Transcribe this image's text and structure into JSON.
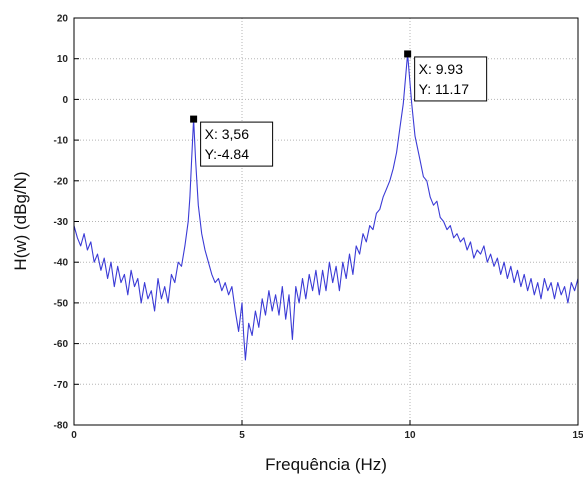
{
  "chart_data": {
    "type": "line",
    "xlabel": "Frequência (Hz)",
    "ylabel": "H(w) (dBg/N)",
    "xlim": [
      0,
      15
    ],
    "ylim": [
      -80,
      20
    ],
    "grid": true,
    "x_ticks": [
      "0",
      "5",
      "10",
      "15"
    ],
    "y_ticks": [
      "20",
      "10",
      "0",
      "-10",
      "-20",
      "-30",
      "-40",
      "-50",
      "-60",
      "-70",
      "-80"
    ],
    "line_color": "#3b3bd6",
    "series": [
      {
        "points": [
          [
            0.0,
            -31
          ],
          [
            0.1,
            -34
          ],
          [
            0.2,
            -36
          ],
          [
            0.3,
            -33
          ],
          [
            0.4,
            -37
          ],
          [
            0.5,
            -35
          ],
          [
            0.6,
            -40
          ],
          [
            0.7,
            -38
          ],
          [
            0.8,
            -42
          ],
          [
            0.9,
            -39
          ],
          [
            1.0,
            -44
          ],
          [
            1.1,
            -40
          ],
          [
            1.2,
            -46
          ],
          [
            1.3,
            -41
          ],
          [
            1.4,
            -45
          ],
          [
            1.5,
            -43
          ],
          [
            1.6,
            -48
          ],
          [
            1.7,
            -42
          ],
          [
            1.8,
            -46
          ],
          [
            1.9,
            -44
          ],
          [
            2.0,
            -50
          ],
          [
            2.1,
            -45
          ],
          [
            2.2,
            -49
          ],
          [
            2.3,
            -47
          ],
          [
            2.4,
            -52
          ],
          [
            2.5,
            -44
          ],
          [
            2.6,
            -49
          ],
          [
            2.7,
            -46
          ],
          [
            2.8,
            -50
          ],
          [
            2.9,
            -43
          ],
          [
            3.0,
            -45
          ],
          [
            3.1,
            -40
          ],
          [
            3.2,
            -41
          ],
          [
            3.3,
            -36
          ],
          [
            3.4,
            -30
          ],
          [
            3.45,
            -24
          ],
          [
            3.5,
            -15
          ],
          [
            3.56,
            -4.84
          ],
          [
            3.62,
            -15
          ],
          [
            3.7,
            -26
          ],
          [
            3.8,
            -33
          ],
          [
            3.9,
            -37
          ],
          [
            4.0,
            -40
          ],
          [
            4.1,
            -43
          ],
          [
            4.2,
            -45
          ],
          [
            4.3,
            -44
          ],
          [
            4.4,
            -47
          ],
          [
            4.5,
            -45
          ],
          [
            4.6,
            -48
          ],
          [
            4.7,
            -46
          ],
          [
            4.8,
            -52
          ],
          [
            4.9,
            -57
          ],
          [
            5.0,
            -50
          ],
          [
            5.05,
            -58
          ],
          [
            5.1,
            -64
          ],
          [
            5.2,
            -55
          ],
          [
            5.3,
            -58
          ],
          [
            5.4,
            -52
          ],
          [
            5.5,
            -56
          ],
          [
            5.6,
            -49
          ],
          [
            5.7,
            -53
          ],
          [
            5.8,
            -47
          ],
          [
            5.9,
            -52
          ],
          [
            6.0,
            -48
          ],
          [
            6.1,
            -53
          ],
          [
            6.2,
            -46
          ],
          [
            6.3,
            -54
          ],
          [
            6.4,
            -48
          ],
          [
            6.5,
            -59
          ],
          [
            6.6,
            -46
          ],
          [
            6.7,
            -50
          ],
          [
            6.8,
            -44
          ],
          [
            6.9,
            -49
          ],
          [
            7.0,
            -43
          ],
          [
            7.1,
            -47
          ],
          [
            7.2,
            -42
          ],
          [
            7.3,
            -48
          ],
          [
            7.4,
            -42
          ],
          [
            7.5,
            -47
          ],
          [
            7.6,
            -40
          ],
          [
            7.7,
            -45
          ],
          [
            7.8,
            -41
          ],
          [
            7.9,
            -47
          ],
          [
            8.0,
            -40
          ],
          [
            8.1,
            -44
          ],
          [
            8.2,
            -38
          ],
          [
            8.3,
            -43
          ],
          [
            8.4,
            -36
          ],
          [
            8.5,
            -38
          ],
          [
            8.6,
            -33
          ],
          [
            8.7,
            -35
          ],
          [
            8.8,
            -31
          ],
          [
            8.9,
            -32
          ],
          [
            9.0,
            -28
          ],
          [
            9.1,
            -27
          ],
          [
            9.2,
            -24
          ],
          [
            9.3,
            -22
          ],
          [
            9.4,
            -20
          ],
          [
            9.5,
            -17
          ],
          [
            9.6,
            -13
          ],
          [
            9.7,
            -7
          ],
          [
            9.8,
            -1
          ],
          [
            9.93,
            11.17
          ],
          [
            10.05,
            -1
          ],
          [
            10.15,
            -9
          ],
          [
            10.3,
            -15
          ],
          [
            10.4,
            -19
          ],
          [
            10.5,
            -20
          ],
          [
            10.6,
            -24
          ],
          [
            10.7,
            -26
          ],
          [
            10.8,
            -25
          ],
          [
            10.9,
            -29
          ],
          [
            11.0,
            -30
          ],
          [
            11.1,
            -32
          ],
          [
            11.2,
            -31
          ],
          [
            11.3,
            -34
          ],
          [
            11.4,
            -33
          ],
          [
            11.5,
            -35
          ],
          [
            11.6,
            -34
          ],
          [
            11.7,
            -37
          ],
          [
            11.8,
            -35
          ],
          [
            11.9,
            -39
          ],
          [
            12.0,
            -37
          ],
          [
            12.1,
            -38
          ],
          [
            12.2,
            -36
          ],
          [
            12.3,
            -40
          ],
          [
            12.4,
            -38
          ],
          [
            12.5,
            -41
          ],
          [
            12.6,
            -39
          ],
          [
            12.7,
            -43
          ],
          [
            12.8,
            -40
          ],
          [
            12.9,
            -44
          ],
          [
            13.0,
            -41
          ],
          [
            13.1,
            -45
          ],
          [
            13.2,
            -42
          ],
          [
            13.3,
            -46
          ],
          [
            13.4,
            -43
          ],
          [
            13.5,
            -47
          ],
          [
            13.6,
            -44
          ],
          [
            13.7,
            -48
          ],
          [
            13.8,
            -45
          ],
          [
            13.9,
            -49
          ],
          [
            14.0,
            -44
          ],
          [
            14.1,
            -47
          ],
          [
            14.2,
            -45
          ],
          [
            14.3,
            -49
          ],
          [
            14.4,
            -45
          ],
          [
            14.5,
            -48
          ],
          [
            14.6,
            -46
          ],
          [
            14.7,
            -50
          ],
          [
            14.8,
            -45
          ],
          [
            14.9,
            -47
          ],
          [
            15.0,
            -44
          ]
        ]
      }
    ],
    "annotations": [
      {
        "x": 3.56,
        "y": -4.84,
        "line1": "X: 3,56",
        "line2": "Y:-4.84"
      },
      {
        "x": 9.93,
        "y": 11.17,
        "line1": "X: 9.93",
        "line2": "Y: 11.17"
      }
    ]
  }
}
